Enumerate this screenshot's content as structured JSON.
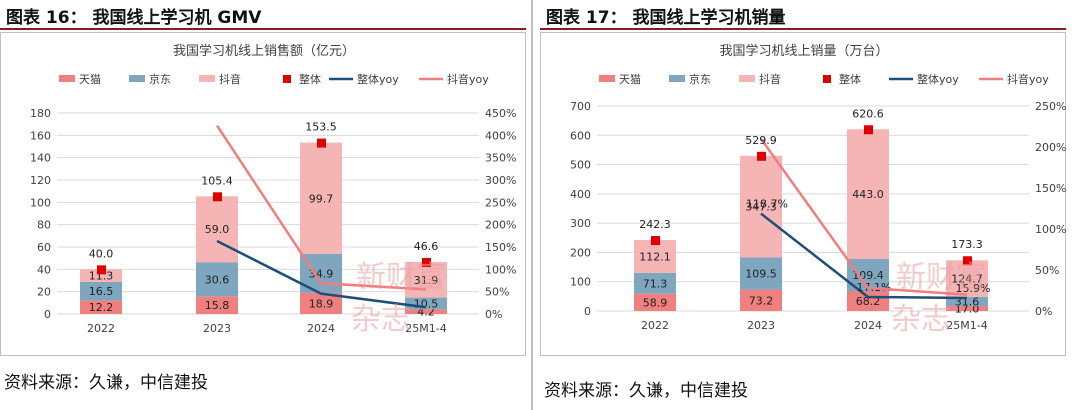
{
  "colors": {
    "tmall": "#f08080",
    "jd": "#7fa6bf",
    "douyin": "#f6b5b5",
    "total": "#e00000",
    "total_yoy": "#1f4e79",
    "douyin_yoy": "#f47c7c",
    "grid": "#d9d9d9",
    "axis_text": "#404040",
    "watermark": "#e8a0a0"
  },
  "left_panel": {
    "fig_title": "图表 16：  我国线上学习机 GMV",
    "source": "资料来源：久谦，中信建投",
    "watermark": [
      "新财富",
      "杂志"
    ]
  },
  "right_panel": {
    "fig_title": "图表 17：  我国线上学习机销量",
    "source": "资料来源：久谦，中信建投",
    "watermark": [
      "新财富",
      "杂志"
    ]
  },
  "chart_data": [
    {
      "type": "bar",
      "stacked": true,
      "title": "我国学习机线上销售额（亿元）",
      "categories": [
        "2022",
        "2023",
        "2024",
        "25M1-4"
      ],
      "legend": [
        "天猫",
        "京东",
        "抖音",
        "整体",
        "整体yoy",
        "抖音yoy"
      ],
      "legend_position": "top",
      "ylim": [
        0,
        180
      ],
      "yticks": [
        "0",
        "20",
        "40",
        "60",
        "80",
        "100",
        "120",
        "140",
        "160",
        "180"
      ],
      "y2lim": [
        0,
        4.5
      ],
      "y2ticks": [
        "0%",
        "50%",
        "100%",
        "150%",
        "200%",
        "250%",
        "300%",
        "350%",
        "400%",
        "450%"
      ],
      "grid": true,
      "series": [
        {
          "name": "天猫",
          "kind": "bar",
          "values": [
            12.2,
            15.8,
            18.9,
            4.2
          ],
          "labels": [
            "12.2",
            "15.8",
            "18.9",
            "4.2"
          ]
        },
        {
          "name": "京东",
          "kind": "bar",
          "values": [
            16.5,
            30.6,
            34.9,
            10.5
          ],
          "labels": [
            "16.5",
            "30.6",
            "34.9",
            "10.5"
          ]
        },
        {
          "name": "抖音",
          "kind": "bar",
          "values": [
            11.3,
            59.0,
            99.7,
            31.9
          ],
          "labels": [
            "11.3",
            "59.0",
            "99.7",
            "31.9"
          ]
        },
        {
          "name": "整体",
          "kind": "marker",
          "values": [
            40.0,
            105.4,
            153.5,
            46.6
          ],
          "labels": [
            "40.0",
            "105.4",
            "153.5",
            "46.6"
          ]
        },
        {
          "name": "整体yoy",
          "kind": "line",
          "axis": "right",
          "values": [
            null,
            1.635,
            0.456,
            0.15
          ]
        },
        {
          "name": "抖音yoy",
          "kind": "line",
          "axis": "right",
          "values": [
            null,
            4.22,
            0.69,
            0.55
          ]
        }
      ]
    },
    {
      "type": "bar",
      "stacked": true,
      "title": "我国学习机线上销量（万台）",
      "categories": [
        "2022",
        "2023",
        "2024",
        "25M1-4"
      ],
      "legend": [
        "天猫",
        "京东",
        "抖音",
        "整体",
        "整体yoy",
        "抖音yoy"
      ],
      "legend_position": "top",
      "ylim": [
        0,
        700
      ],
      "yticks": [
        "0",
        "100",
        "200",
        "300",
        "400",
        "500",
        "600",
        "700"
      ],
      "y2lim": [
        0,
        2.5
      ],
      "y2ticks": [
        "0%",
        "50%",
        "100%",
        "150%",
        "200%",
        "250%"
      ],
      "grid": true,
      "series": [
        {
          "name": "天猫",
          "kind": "bar",
          "values": [
            58.9,
            73.2,
            68.2,
            17.0
          ],
          "labels": [
            "58.9",
            "73.2",
            "68.2",
            "17.0"
          ]
        },
        {
          "name": "京东",
          "kind": "bar",
          "values": [
            71.3,
            109.5,
            109.4,
            31.6
          ],
          "labels": [
            "71.3",
            "109.5",
            "109.4",
            "31.6"
          ]
        },
        {
          "name": "抖音",
          "kind": "bar",
          "values": [
            112.1,
            347.3,
            443.0,
            124.7
          ],
          "labels": [
            "112.1",
            "347.3",
            "443.0",
            "124.7"
          ]
        },
        {
          "name": "整体",
          "kind": "marker",
          "values": [
            242.3,
            529.9,
            620.6,
            173.3
          ],
          "labels": [
            "242.3",
            "529.9",
            "620.6",
            "173.3"
          ]
        },
        {
          "name": "整体yoy",
          "kind": "line",
          "axis": "right",
          "values": [
            null,
            1.187,
            0.171,
            0.159
          ],
          "labels": [
            null,
            "118.7%",
            "17.1%",
            "15.9%"
          ]
        },
        {
          "name": "抖音yoy",
          "kind": "line",
          "axis": "right",
          "values": [
            null,
            2.1,
            0.28,
            0.2
          ]
        }
      ]
    }
  ]
}
